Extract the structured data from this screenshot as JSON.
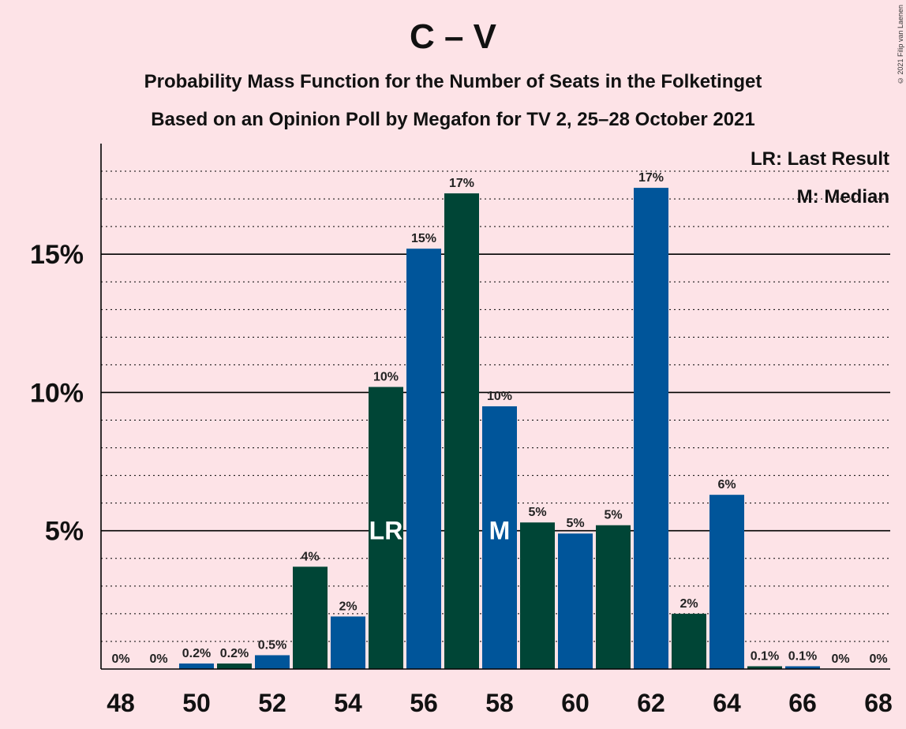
{
  "title": "C – V",
  "subtitle_line1": "Probability Mass Function for the Number of Seats in the Folketinget",
  "subtitle_line2": "Based on an Opinion Poll by Megafon for TV 2, 25–28 October 2021",
  "copyright": "© 2021 Filip van Laenen",
  "legend": {
    "last_result": "LR: Last Result",
    "median": "M: Median"
  },
  "colors": {
    "background": "#fde3e7",
    "bar_blue": "#00559a",
    "bar_green": "#004536",
    "axis": "#000000"
  },
  "chart_data": {
    "type": "bar",
    "x": [
      48,
      49,
      50,
      51,
      52,
      53,
      54,
      55,
      56,
      57,
      58,
      59,
      60,
      61,
      62,
      63,
      64,
      65,
      66,
      67,
      68
    ],
    "values": [
      0,
      0,
      0.2,
      0.2,
      0.5,
      3.7,
      1.9,
      10.2,
      15.2,
      17.2,
      9.5,
      5.3,
      4.9,
      5.2,
      17.4,
      2.0,
      6.3,
      0.1,
      0.1,
      0,
      0
    ],
    "value_labels": [
      "0%",
      "0%",
      "0.2%",
      "0.2%",
      "0.5%",
      "4%",
      "2%",
      "10%",
      "15%",
      "17%",
      "10%",
      "5%",
      "5%",
      "5%",
      "17%",
      "2%",
      "6%",
      "0.1%",
      "0.1%",
      "0%",
      "0%"
    ],
    "x_tick_labels": [
      "48",
      "50",
      "52",
      "54",
      "56",
      "58",
      "60",
      "62",
      "64",
      "66",
      "68"
    ],
    "y_tick_labels": [
      "5%",
      "10%",
      "15%"
    ],
    "y_ticks": [
      5,
      10,
      15
    ],
    "ylim": [
      0,
      19
    ],
    "unit": "%",
    "bar_colors": [
      "blue",
      "green"
    ],
    "last_result": {
      "x": 55,
      "label": "LR"
    },
    "median": {
      "x": 58,
      "label": "M"
    },
    "legend_position": "top-right"
  }
}
